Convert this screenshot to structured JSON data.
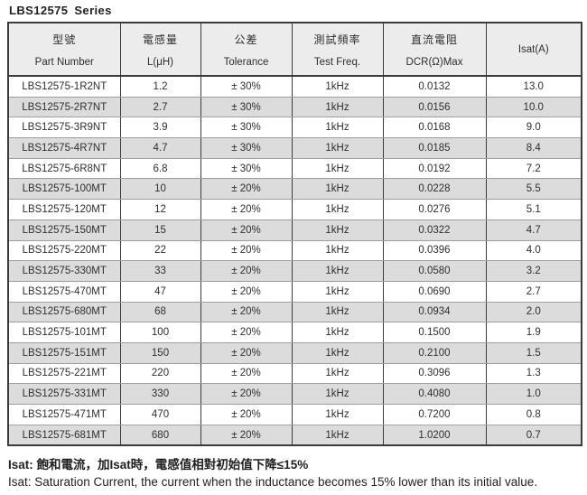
{
  "page_title": "LBS12575 Series",
  "table": {
    "columns": [
      {
        "zh": "型號",
        "en": "Part Number"
      },
      {
        "zh": "電感量",
        "en": "L(μH)"
      },
      {
        "zh": "公差",
        "en": "Tolerance"
      },
      {
        "zh": "測試頻率",
        "en": "Test Freq."
      },
      {
        "zh": "直流電阻",
        "en": "DCR(Ω)Max"
      },
      {
        "zh": "",
        "en": "Isat(A)"
      }
    ],
    "rows": [
      [
        "LBS12575-1R2NT",
        "1.2",
        "± 30%",
        "1kHz",
        "0.0132",
        "13.0"
      ],
      [
        "LBS12575-2R7NT",
        "2.7",
        "± 30%",
        "1kHz",
        "0.0156",
        "10.0"
      ],
      [
        "LBS12575-3R9NT",
        "3.9",
        "± 30%",
        "1kHz",
        "0.0168",
        "9.0"
      ],
      [
        "LBS12575-4R7NT",
        "4.7",
        "± 30%",
        "1kHz",
        "0.0185",
        "8.4"
      ],
      [
        "LBS12575-6R8NT",
        "6.8",
        "± 30%",
        "1kHz",
        "0.0192",
        "7.2"
      ],
      [
        "LBS12575-100MT",
        "10",
        "± 20%",
        "1kHz",
        "0.0228",
        "5.5"
      ],
      [
        "LBS12575-120MT",
        "12",
        "± 20%",
        "1kHz",
        "0.0276",
        "5.1"
      ],
      [
        "LBS12575-150MT",
        "15",
        "± 20%",
        "1kHz",
        "0.0322",
        "4.7"
      ],
      [
        "LBS12575-220MT",
        "22",
        "± 20%",
        "1kHz",
        "0.0396",
        "4.0"
      ],
      [
        "LBS12575-330MT",
        "33",
        "± 20%",
        "1kHz",
        "0.0580",
        "3.2"
      ],
      [
        "LBS12575-470MT",
        "47",
        "± 20%",
        "1kHz",
        "0.0690",
        "2.7"
      ],
      [
        "LBS12575-680MT",
        "68",
        "± 20%",
        "1kHz",
        "0.0934",
        "2.0"
      ],
      [
        "LBS12575-101MT",
        "100",
        "± 20%",
        "1kHz",
        "0.1500",
        "1.9"
      ],
      [
        "LBS12575-151MT",
        "150",
        "± 20%",
        "1kHz",
        "0.2100",
        "1.5"
      ],
      [
        "LBS12575-221MT",
        "220",
        "± 20%",
        "1kHz",
        "0.3096",
        "1.3"
      ],
      [
        "LBS12575-331MT",
        "330",
        "± 20%",
        "1kHz",
        "0.4080",
        "1.0"
      ],
      [
        "LBS12575-471MT",
        "470",
        "± 20%",
        "1kHz",
        "0.7200",
        "0.8"
      ],
      [
        "LBS12575-681MT",
        "680",
        "± 20%",
        "1kHz",
        "1.0200",
        "0.7"
      ]
    ]
  },
  "footnotes": {
    "zh": "Isat: 飽和電流，加Isat時，電感值相對初始值下降≤15%",
    "en": "Isat: Saturation Current, the current when the inductance becomes 15% lower than its initial value."
  },
  "colors": {
    "header_bg": "#ececec",
    "row_alt_bg": "#dcdcdc",
    "border_dark": "#3b3b3b",
    "border_light": "#9e9e9e",
    "text": "#2e2e2e"
  }
}
